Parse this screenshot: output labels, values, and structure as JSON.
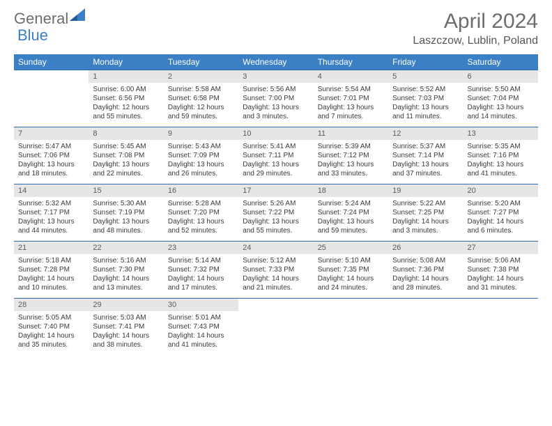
{
  "brand": {
    "part1": "General",
    "part2": "Blue"
  },
  "title": "April 2024",
  "location": "Laszczow, Lublin, Poland",
  "colors": {
    "header_bg": "#3b7fc4",
    "header_text": "#ffffff",
    "daynum_bg": "#e6e6e6",
    "row_border": "#2f6ba8",
    "title_color": "#6d6d6d",
    "text_color": "#3a3a3a"
  },
  "dayHeaders": [
    "Sunday",
    "Monday",
    "Tuesday",
    "Wednesday",
    "Thursday",
    "Friday",
    "Saturday"
  ],
  "weeks": [
    [
      null,
      {
        "n": "1",
        "sr": "Sunrise: 6:00 AM",
        "ss": "Sunset: 6:56 PM",
        "dl": "Daylight: 12 hours and 55 minutes."
      },
      {
        "n": "2",
        "sr": "Sunrise: 5:58 AM",
        "ss": "Sunset: 6:58 PM",
        "dl": "Daylight: 12 hours and 59 minutes."
      },
      {
        "n": "3",
        "sr": "Sunrise: 5:56 AM",
        "ss": "Sunset: 7:00 PM",
        "dl": "Daylight: 13 hours and 3 minutes."
      },
      {
        "n": "4",
        "sr": "Sunrise: 5:54 AM",
        "ss": "Sunset: 7:01 PM",
        "dl": "Daylight: 13 hours and 7 minutes."
      },
      {
        "n": "5",
        "sr": "Sunrise: 5:52 AM",
        "ss": "Sunset: 7:03 PM",
        "dl": "Daylight: 13 hours and 11 minutes."
      },
      {
        "n": "6",
        "sr": "Sunrise: 5:50 AM",
        "ss": "Sunset: 7:04 PM",
        "dl": "Daylight: 13 hours and 14 minutes."
      }
    ],
    [
      {
        "n": "7",
        "sr": "Sunrise: 5:47 AM",
        "ss": "Sunset: 7:06 PM",
        "dl": "Daylight: 13 hours and 18 minutes."
      },
      {
        "n": "8",
        "sr": "Sunrise: 5:45 AM",
        "ss": "Sunset: 7:08 PM",
        "dl": "Daylight: 13 hours and 22 minutes."
      },
      {
        "n": "9",
        "sr": "Sunrise: 5:43 AM",
        "ss": "Sunset: 7:09 PM",
        "dl": "Daylight: 13 hours and 26 minutes."
      },
      {
        "n": "10",
        "sr": "Sunrise: 5:41 AM",
        "ss": "Sunset: 7:11 PM",
        "dl": "Daylight: 13 hours and 29 minutes."
      },
      {
        "n": "11",
        "sr": "Sunrise: 5:39 AM",
        "ss": "Sunset: 7:12 PM",
        "dl": "Daylight: 13 hours and 33 minutes."
      },
      {
        "n": "12",
        "sr": "Sunrise: 5:37 AM",
        "ss": "Sunset: 7:14 PM",
        "dl": "Daylight: 13 hours and 37 minutes."
      },
      {
        "n": "13",
        "sr": "Sunrise: 5:35 AM",
        "ss": "Sunset: 7:16 PM",
        "dl": "Daylight: 13 hours and 41 minutes."
      }
    ],
    [
      {
        "n": "14",
        "sr": "Sunrise: 5:32 AM",
        "ss": "Sunset: 7:17 PM",
        "dl": "Daylight: 13 hours and 44 minutes."
      },
      {
        "n": "15",
        "sr": "Sunrise: 5:30 AM",
        "ss": "Sunset: 7:19 PM",
        "dl": "Daylight: 13 hours and 48 minutes."
      },
      {
        "n": "16",
        "sr": "Sunrise: 5:28 AM",
        "ss": "Sunset: 7:20 PM",
        "dl": "Daylight: 13 hours and 52 minutes."
      },
      {
        "n": "17",
        "sr": "Sunrise: 5:26 AM",
        "ss": "Sunset: 7:22 PM",
        "dl": "Daylight: 13 hours and 55 minutes."
      },
      {
        "n": "18",
        "sr": "Sunrise: 5:24 AM",
        "ss": "Sunset: 7:24 PM",
        "dl": "Daylight: 13 hours and 59 minutes."
      },
      {
        "n": "19",
        "sr": "Sunrise: 5:22 AM",
        "ss": "Sunset: 7:25 PM",
        "dl": "Daylight: 14 hours and 3 minutes."
      },
      {
        "n": "20",
        "sr": "Sunrise: 5:20 AM",
        "ss": "Sunset: 7:27 PM",
        "dl": "Daylight: 14 hours and 6 minutes."
      }
    ],
    [
      {
        "n": "21",
        "sr": "Sunrise: 5:18 AM",
        "ss": "Sunset: 7:28 PM",
        "dl": "Daylight: 14 hours and 10 minutes."
      },
      {
        "n": "22",
        "sr": "Sunrise: 5:16 AM",
        "ss": "Sunset: 7:30 PM",
        "dl": "Daylight: 14 hours and 13 minutes."
      },
      {
        "n": "23",
        "sr": "Sunrise: 5:14 AM",
        "ss": "Sunset: 7:32 PM",
        "dl": "Daylight: 14 hours and 17 minutes."
      },
      {
        "n": "24",
        "sr": "Sunrise: 5:12 AM",
        "ss": "Sunset: 7:33 PM",
        "dl": "Daylight: 14 hours and 21 minutes."
      },
      {
        "n": "25",
        "sr": "Sunrise: 5:10 AM",
        "ss": "Sunset: 7:35 PM",
        "dl": "Daylight: 14 hours and 24 minutes."
      },
      {
        "n": "26",
        "sr": "Sunrise: 5:08 AM",
        "ss": "Sunset: 7:36 PM",
        "dl": "Daylight: 14 hours and 28 minutes."
      },
      {
        "n": "27",
        "sr": "Sunrise: 5:06 AM",
        "ss": "Sunset: 7:38 PM",
        "dl": "Daylight: 14 hours and 31 minutes."
      }
    ],
    [
      {
        "n": "28",
        "sr": "Sunrise: 5:05 AM",
        "ss": "Sunset: 7:40 PM",
        "dl": "Daylight: 14 hours and 35 minutes."
      },
      {
        "n": "29",
        "sr": "Sunrise: 5:03 AM",
        "ss": "Sunset: 7:41 PM",
        "dl": "Daylight: 14 hours and 38 minutes."
      },
      {
        "n": "30",
        "sr": "Sunrise: 5:01 AM",
        "ss": "Sunset: 7:43 PM",
        "dl": "Daylight: 14 hours and 41 minutes."
      },
      null,
      null,
      null,
      null
    ]
  ]
}
